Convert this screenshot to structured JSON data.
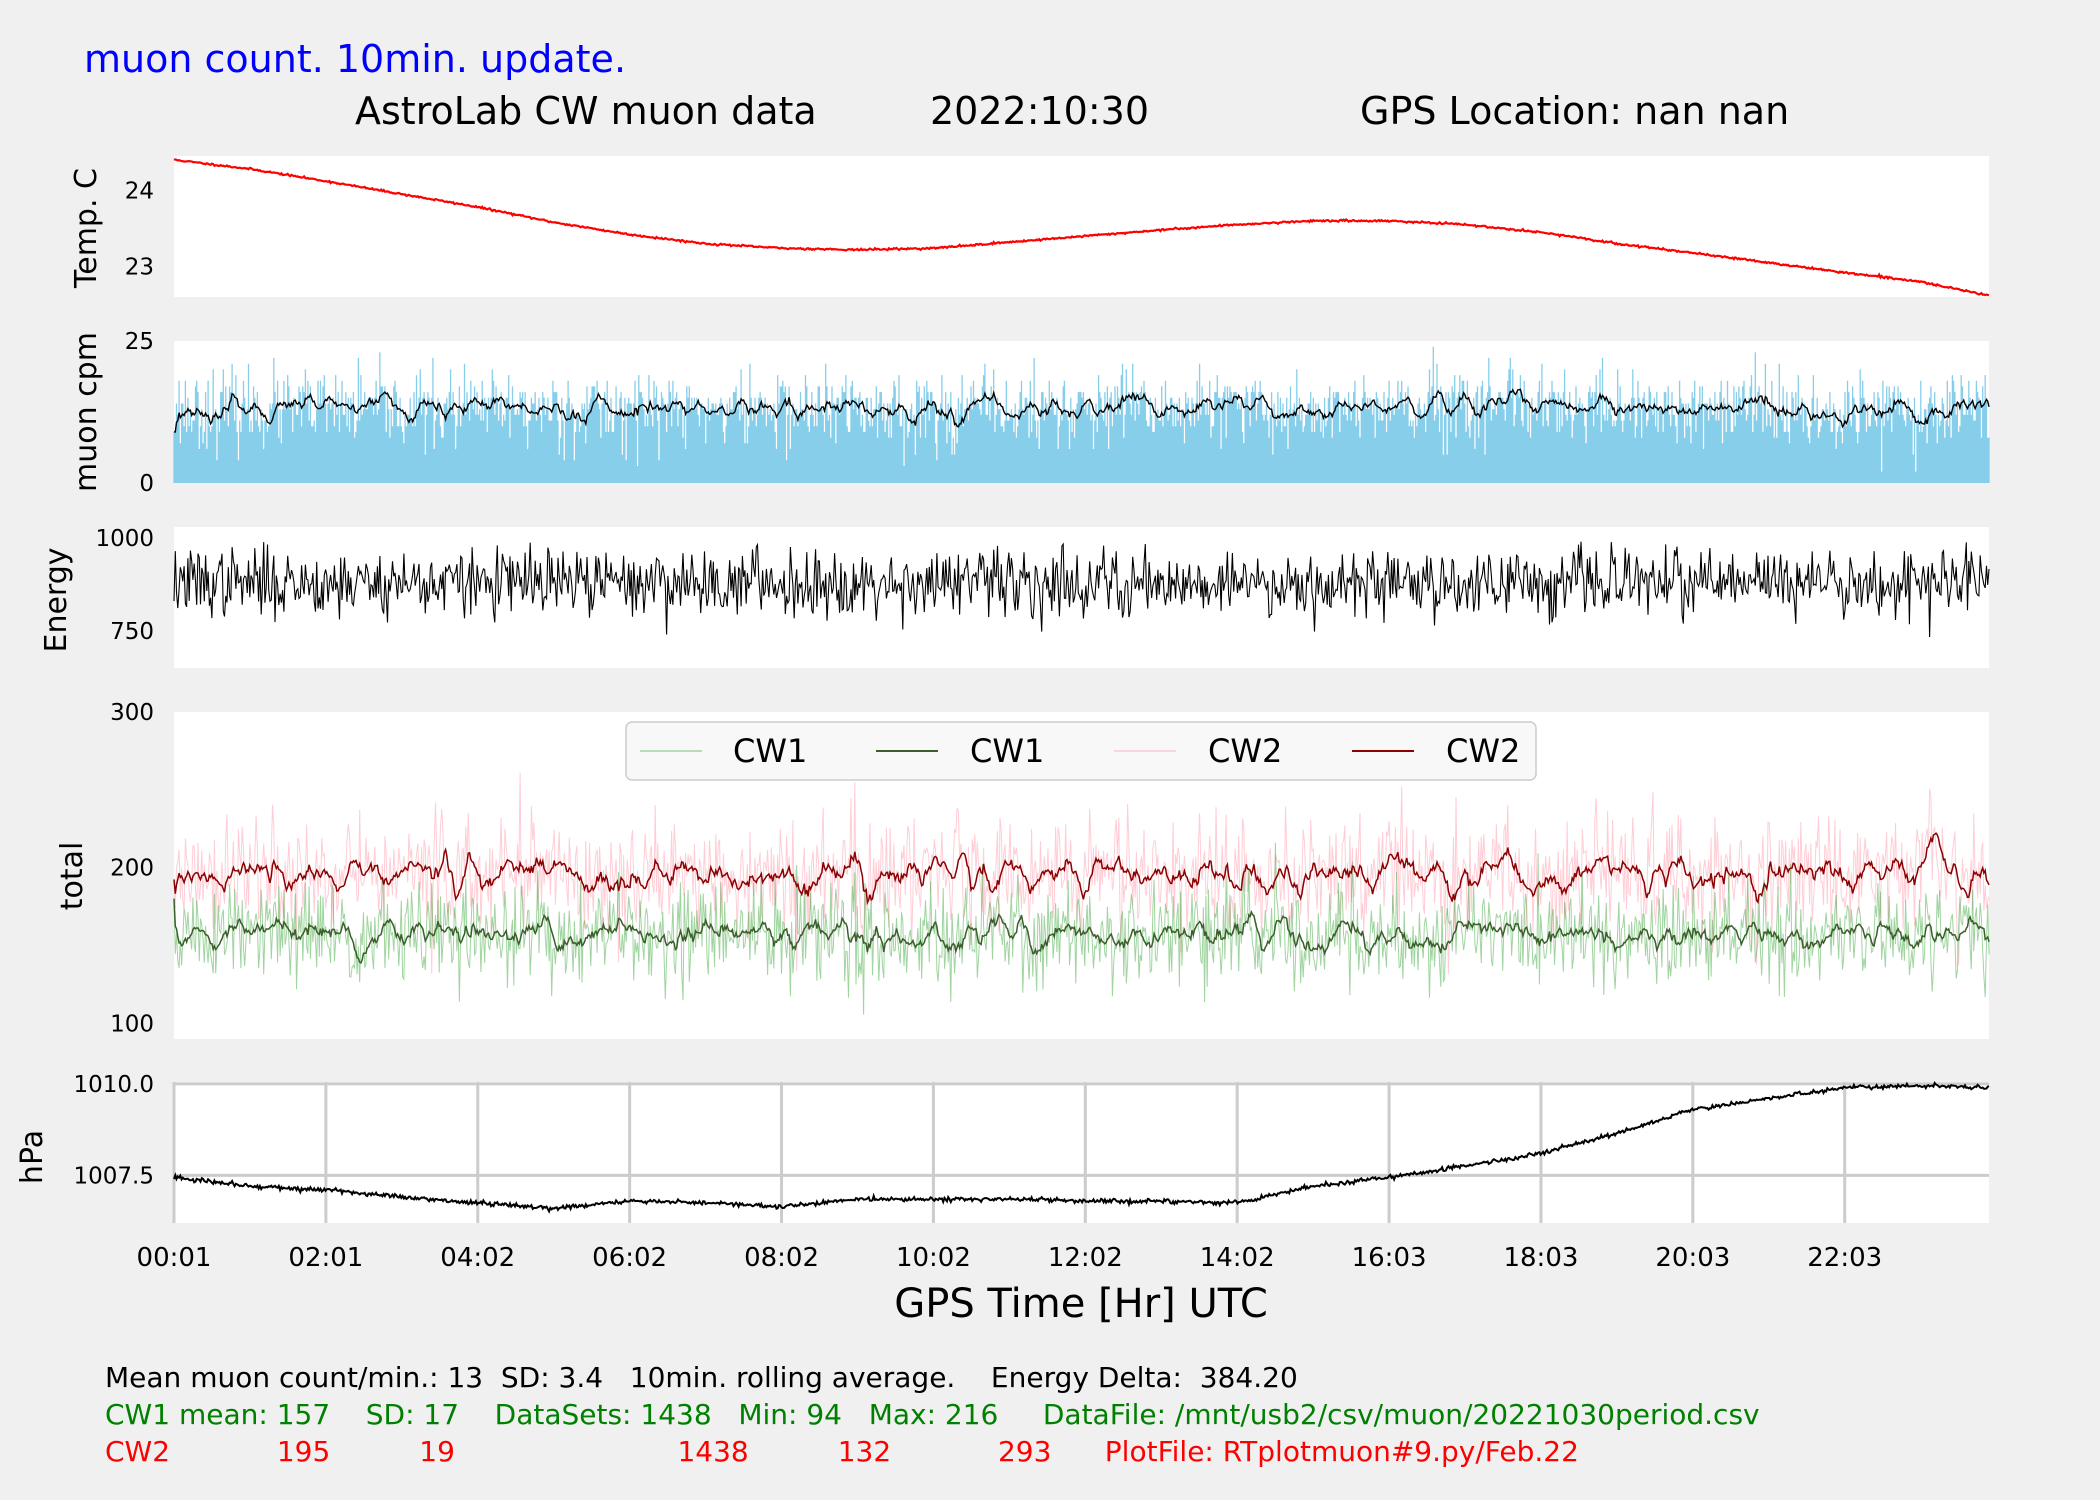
{
  "header": {
    "update_note": "muon count.  10min. update.",
    "title": "AstroLab CW muon data",
    "date": "2022:10:30",
    "location": "GPS Location: nan   nan"
  },
  "footer": {
    "line1": "Mean muon count/min.: 13  SD: 3.4   10min. rolling average.    Energy Delta:  384.20",
    "line2": "CW1 mean: 157    SD: 17    DataSets: 1438   Min: 94   Max: 216     DataFile: /mnt/usb2/csv/muon/20221030period.csv",
    "line3": "CW2            195          19                         1438          132            293      PlotFile: RTplotmuon#9.py/Feb.22"
  },
  "colors": {
    "background": "#f0f0f0",
    "temperature": "#ff0000",
    "muon_bars": "#87ceeb",
    "muon_avg": "#000000",
    "energy": "#000000",
    "cw1_raw": "#2ca02c",
    "cw1_avg": "#3b5e2b",
    "cw2_raw": "#ffc0cb",
    "cw2_avg": "#8b0000",
    "pressure": "#000000",
    "header_blue": "#0000ff",
    "footer_green": "#008000",
    "footer_red": "#ff0000"
  },
  "chart_data": [
    {
      "type": "line",
      "panel": "temperature",
      "ylabel": "Temp. C",
      "yticks": [
        23,
        24
      ],
      "ylim": [
        22.6,
        24.45
      ],
      "x_hours": [
        0,
        1,
        2,
        3,
        4,
        5,
        6,
        7,
        8,
        9,
        10,
        11,
        12,
        13,
        14,
        15,
        16,
        17,
        18,
        19,
        20,
        21,
        22,
        23,
        23.9
      ],
      "values": [
        24.4,
        24.28,
        24.12,
        23.95,
        23.78,
        23.58,
        23.42,
        23.3,
        23.24,
        23.22,
        23.24,
        23.32,
        23.4,
        23.48,
        23.55,
        23.6,
        23.6,
        23.55,
        23.45,
        23.3,
        23.18,
        23.05,
        22.92,
        22.8,
        22.62
      ],
      "grid": false
    },
    {
      "type": "bar",
      "panel": "muon_cpm",
      "ylabel": "muon cpm",
      "yticks": [
        0,
        25
      ],
      "ylim": [
        0,
        25
      ],
      "mean_per_min": 13,
      "sd": 3.4,
      "rolling_average_label": "10min. rolling average.",
      "rolling_average_level": 13,
      "grid": false
    },
    {
      "type": "line",
      "panel": "energy",
      "ylabel": "Energy",
      "yticks": [
        750,
        1000
      ],
      "ylim": [
        650,
        1030
      ],
      "mean_level": 880,
      "range": [
        660,
        1020
      ],
      "energy_delta": 384.2,
      "grid": false
    },
    {
      "type": "line",
      "panel": "total",
      "ylabel": "total",
      "yticks": [
        100,
        200,
        300
      ],
      "ylim": [
        90,
        300
      ],
      "legend": {
        "placement": "top-center",
        "entries": [
          "CW1",
          "CW1",
          "CW2",
          "CW2"
        ]
      },
      "series": [
        {
          "name": "CW1",
          "style": "raw",
          "mean": 157,
          "sd": 17,
          "min": 94,
          "max": 216,
          "datasets": 1438
        },
        {
          "name": "CW1",
          "style": "rolling",
          "mean": 157
        },
        {
          "name": "CW2",
          "style": "raw",
          "mean": 195,
          "sd": 19,
          "min": 132,
          "max": 293,
          "datasets": 1438
        },
        {
          "name": "CW2",
          "style": "rolling",
          "mean": 195
        }
      ],
      "grid": false
    },
    {
      "type": "line",
      "panel": "pressure",
      "ylabel": "hPa",
      "yticks": [
        1007.5,
        1010.0
      ],
      "ytick_labels": [
        "1007.5",
        "1010.0"
      ],
      "ylim": [
        1006.2,
        1010.05
      ],
      "x_hours": [
        0,
        1,
        2,
        3,
        4,
        5,
        6,
        7,
        8,
        9,
        10,
        11,
        12,
        13,
        14,
        15,
        16,
        17,
        18,
        19,
        20,
        21,
        22,
        23,
        23.9
      ],
      "values": [
        1007.45,
        1007.2,
        1007.1,
        1006.9,
        1006.75,
        1006.6,
        1006.8,
        1006.75,
        1006.65,
        1006.85,
        1006.85,
        1006.85,
        1006.8,
        1006.8,
        1006.75,
        1007.2,
        1007.45,
        1007.75,
        1008.1,
        1008.65,
        1009.3,
        1009.6,
        1009.9,
        1009.95,
        1009.9
      ],
      "grid": true
    }
  ],
  "xaxis": {
    "label": "GPS Time  [Hr] UTC",
    "tick_labels": [
      "00:01",
      "02:01",
      "04:02",
      "06:02",
      "08:02",
      "10:02",
      "12:02",
      "14:02",
      "16:03",
      "18:03",
      "20:03",
      "22:03"
    ],
    "tick_hours": [
      0.0,
      2.0,
      4.0,
      6.0,
      8.0,
      10.0,
      12.0,
      14.0,
      16.0,
      18.0,
      20.0,
      22.0
    ],
    "range_hours": [
      0,
      23.9
    ]
  }
}
